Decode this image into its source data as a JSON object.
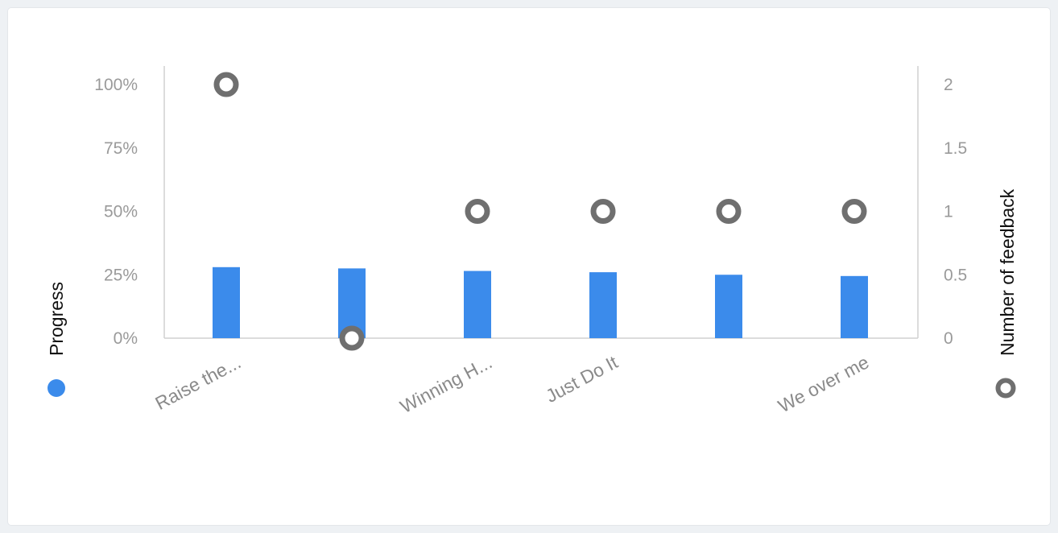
{
  "colors": {
    "bar": "#3b8beb",
    "feedback_marker": "#6f6f6f",
    "axis": "#d0d0d0"
  },
  "chart_data": {
    "type": "bar",
    "categories": [
      "Raise the...",
      "",
      "Winning H...",
      "Just Do It",
      "",
      "We over me"
    ],
    "series": [
      {
        "name": "Progress",
        "type": "bar",
        "axis": "left",
        "values": [
          28,
          27.5,
          26.5,
          26,
          25,
          24.5
        ]
      },
      {
        "name": "Number of feedback",
        "type": "scatter",
        "axis": "right",
        "values": [
          2,
          0,
          1,
          1,
          1,
          1
        ]
      }
    ],
    "y_left": {
      "label": "Progress",
      "ylim": [
        0,
        100
      ],
      "ticks": [
        0,
        25,
        50,
        75,
        100
      ],
      "tick_labels": [
        "0%",
        "25%",
        "50%",
        "75%",
        "100%"
      ]
    },
    "y_right": {
      "label": "Number of feedback",
      "ylim": [
        0,
        2
      ],
      "ticks": [
        0,
        0.5,
        1,
        1.5,
        2
      ],
      "tick_labels": [
        "0",
        "0.5",
        "1",
        "1.5",
        "2"
      ]
    },
    "grid": false,
    "legend": "axis-sides"
  }
}
